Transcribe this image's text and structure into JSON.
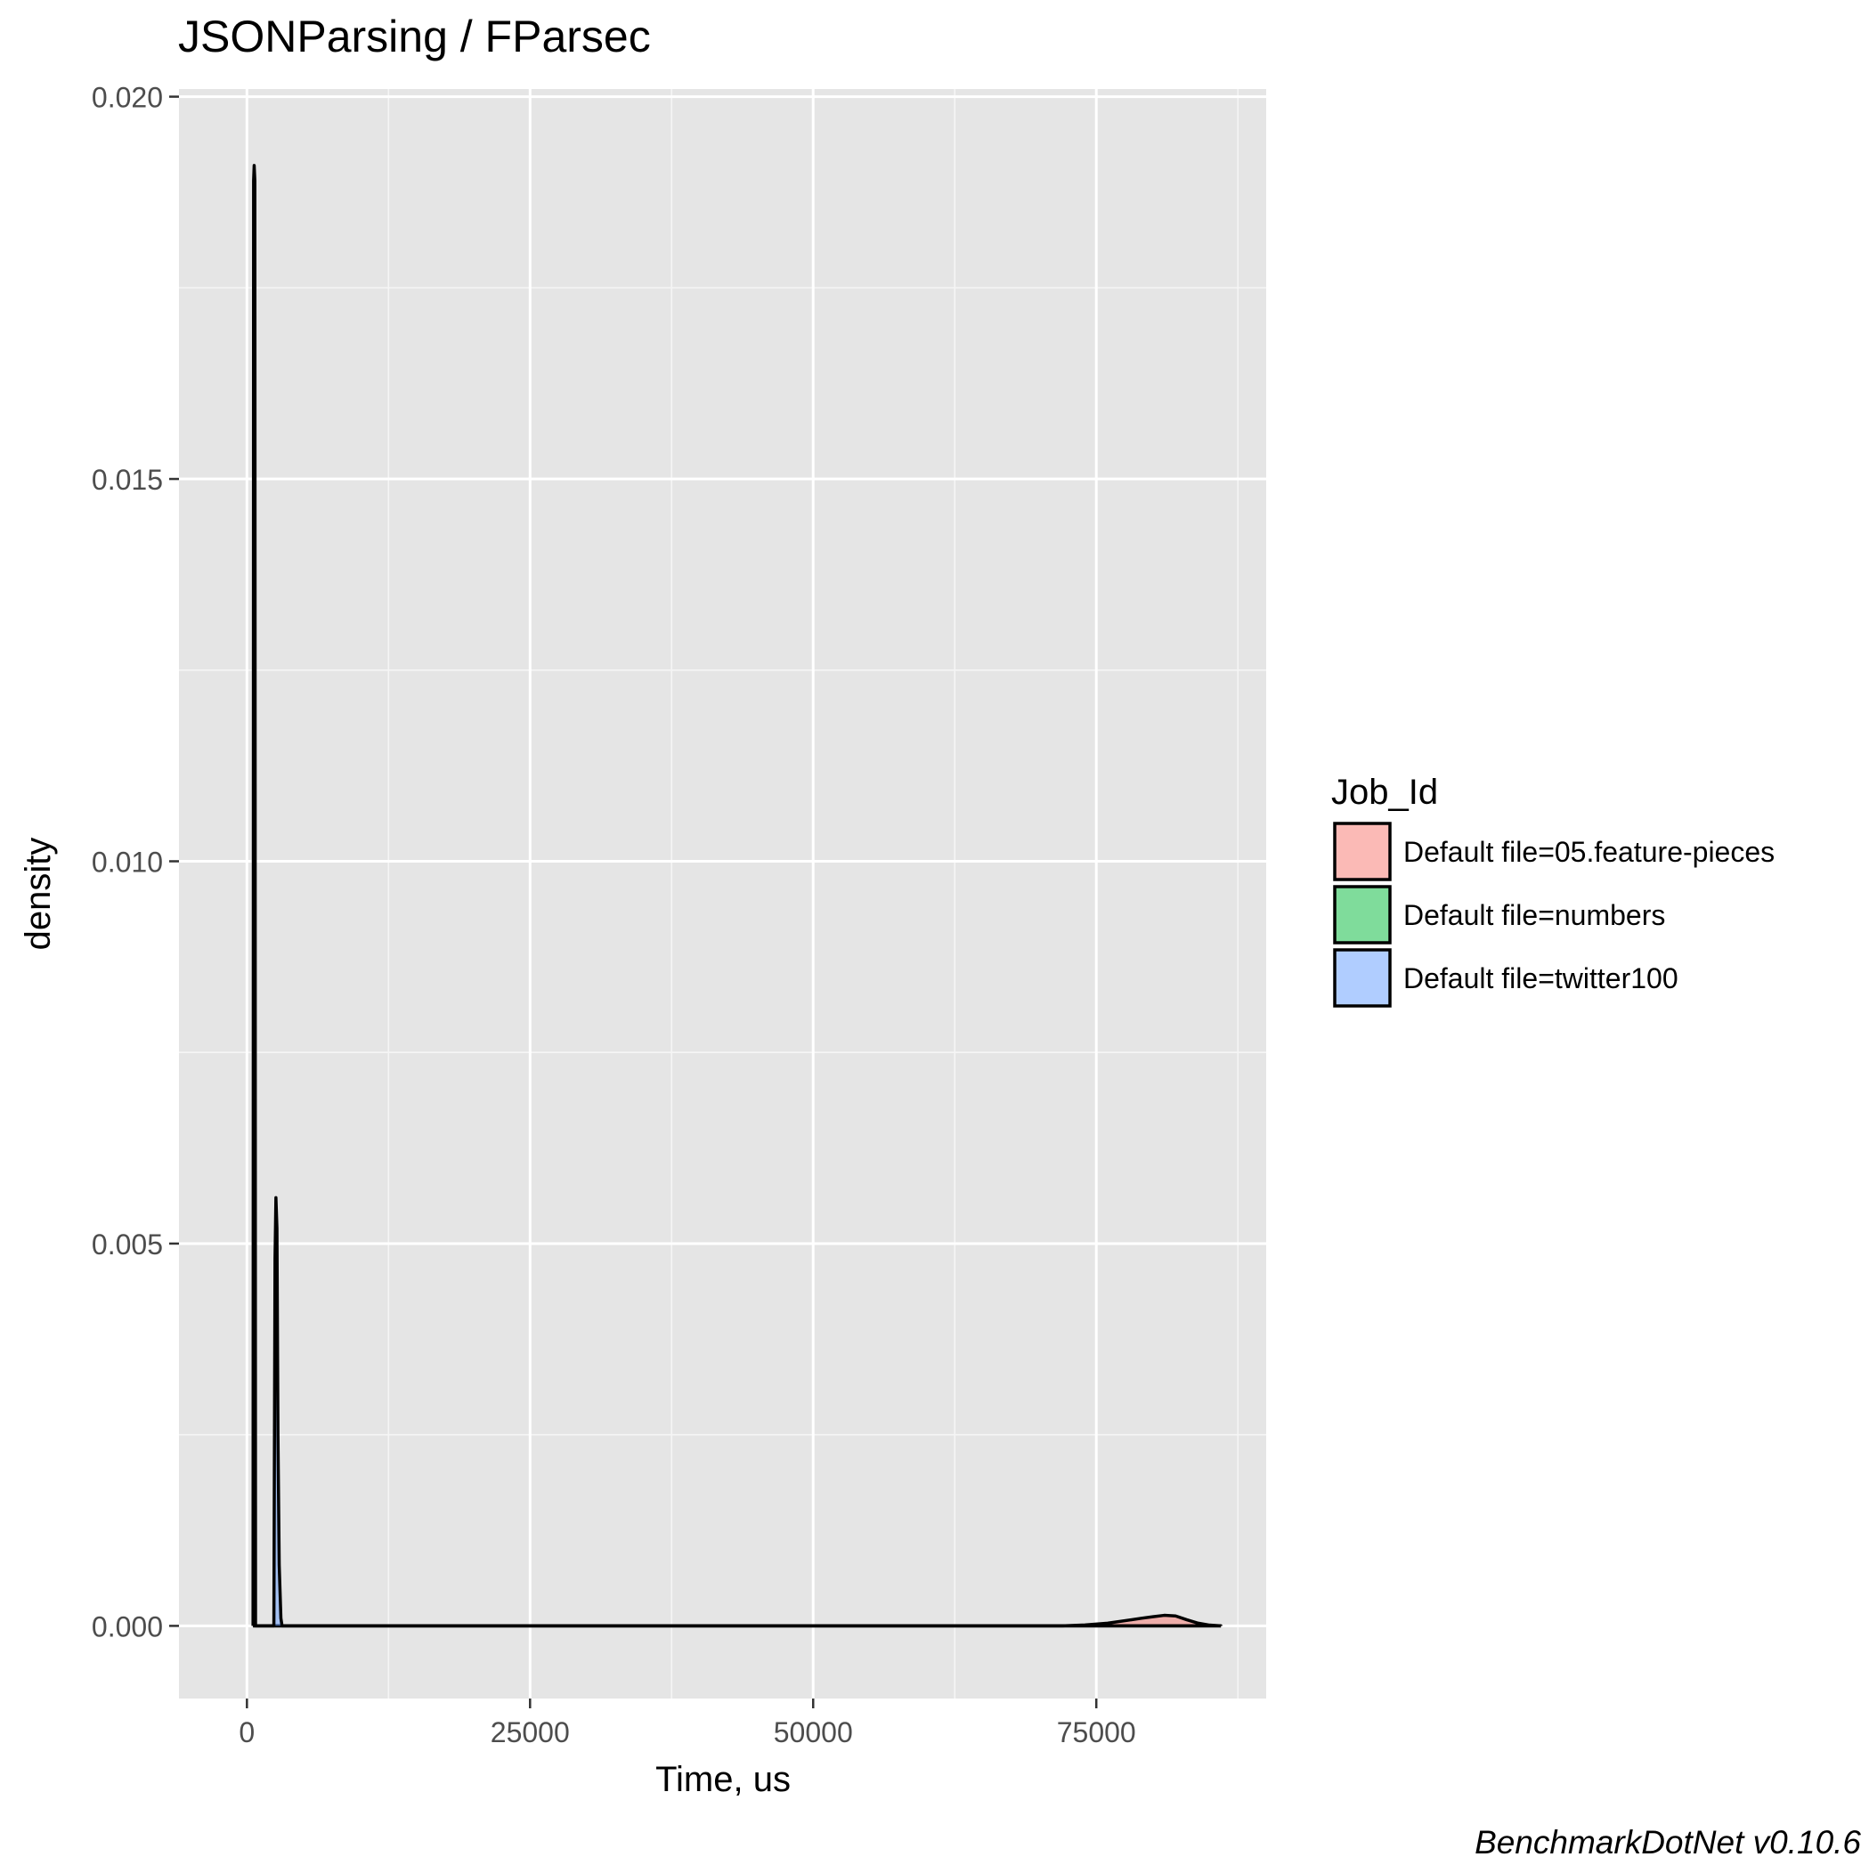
{
  "chart_data": {
    "type": "area",
    "title": "JSONParsing / FParsec",
    "xlabel": "Time, us",
    "ylabel": "density",
    "xlim": [
      -6000,
      90000
    ],
    "ylim": [
      -0.00095,
      0.0201
    ],
    "x_ticks": [
      0,
      25000,
      50000,
      75000
    ],
    "x_tick_labels": [
      "0",
      "25000",
      "50000",
      "75000"
    ],
    "y_ticks": [
      0.0,
      0.005,
      0.01,
      0.015,
      0.02
    ],
    "y_tick_labels": [
      "0.000",
      "0.005",
      "0.010",
      "0.015",
      "0.020"
    ],
    "grid": true,
    "legend": {
      "title": "Job_Id",
      "placement": "right",
      "entries": [
        "Default file=05.feature-pieces",
        "Default file=numbers",
        "Default file=twitter100"
      ]
    },
    "series": [
      {
        "name": "Default file=05.feature-pieces",
        "color": "#F8766D",
        "x": [
          72000,
          74000,
          76000,
          78000,
          79000,
          80000,
          81000,
          82000,
          83000,
          84000,
          85000,
          86000
        ],
        "y": [
          0.0,
          1.2e-05,
          3.5e-05,
          7.8e-05,
          0.0001,
          0.00012,
          0.000138,
          0.00013,
          8e-05,
          3.5e-05,
          1e-05,
          0.0
        ]
      },
      {
        "name": "Default file=numbers",
        "color": "#00BA38",
        "x": [
          540,
          590,
          640,
          700,
          760
        ],
        "y": [
          0.0,
          0.0189,
          0.0191,
          0.0189,
          0.0
        ]
      },
      {
        "name": "Default file=twitter100",
        "color": "#619CFF",
        "x": [
          2380,
          2480,
          2560,
          2650,
          2740,
          2850,
          3000,
          3100
        ],
        "y": [
          0.0,
          0.0048,
          0.0056,
          0.0052,
          0.0025,
          0.0008,
          0.0001,
          0.0
        ]
      }
    ]
  },
  "caption": "BenchmarkDotNet v0.10.6"
}
